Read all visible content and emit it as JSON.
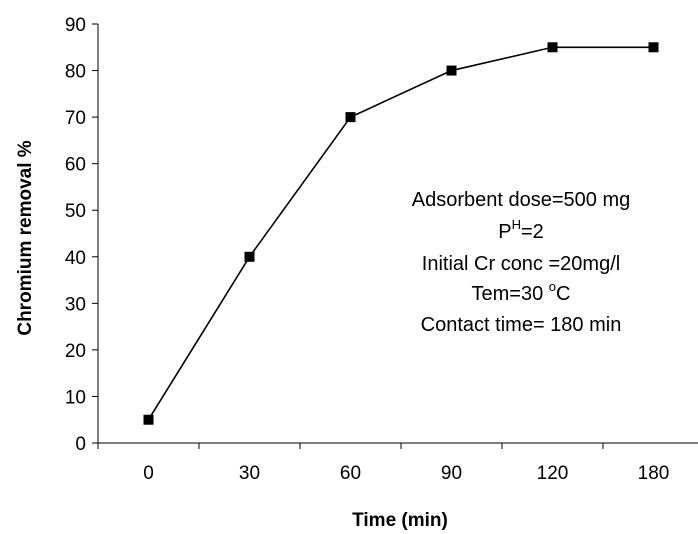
{
  "chart_data": {
    "type": "line",
    "title": "",
    "xlabel": "Time (min)",
    "ylabel": "Chromium removal %",
    "categories": [
      "0",
      "30",
      "60",
      "90",
      "120",
      "180"
    ],
    "series": [
      {
        "values": [
          5,
          40,
          70,
          80,
          85,
          85
        ]
      }
    ],
    "ylim": [
      0,
      90
    ],
    "yticks": [
      "0",
      "10",
      "20",
      "30",
      "40",
      "50",
      "60",
      "70",
      "80",
      "90"
    ],
    "grid": false,
    "legend": "none",
    "marker": "square",
    "line_color": "#000000",
    "marker_color": "#000000",
    "annotations": {
      "line1": "Adsorbent dose=500 mg",
      "line2_base": "P",
      "line2_sup": "H",
      "line2_rest": "=2",
      "line3": "Initial Cr conc =20mg/l",
      "line4_pre": "Tem=30 ",
      "line4_sup": "o",
      "line4_post": "C",
      "line5": "Contact time= 180 min"
    }
  }
}
